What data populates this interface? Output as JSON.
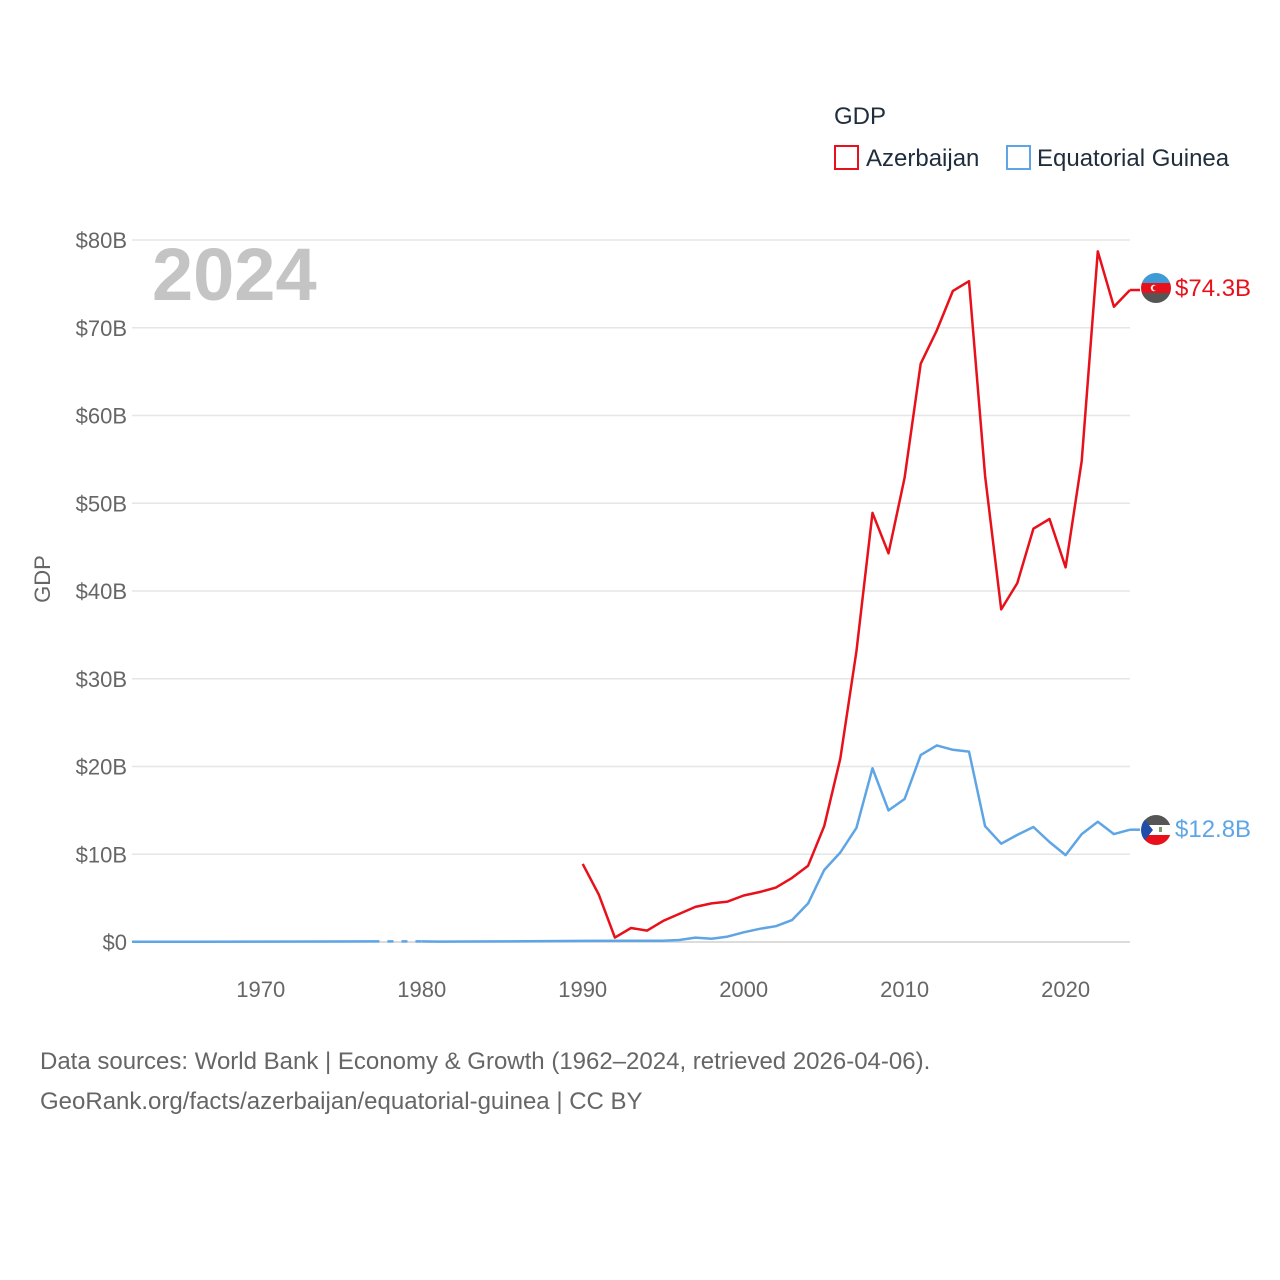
{
  "chart_data": {
    "type": "line",
    "year_label": "2024",
    "legend_title": "GDP",
    "ylabel": "GDP",
    "xlim": [
      1962,
      2024
    ],
    "ylim": [
      0,
      80
    ],
    "x_ticks": [
      1970,
      1980,
      1990,
      2000,
      2010,
      2020
    ],
    "x_tick_labels": [
      "1970",
      "1980",
      "1990",
      "2000",
      "2010",
      "2020"
    ],
    "y_ticks": [
      0,
      10,
      20,
      30,
      40,
      50,
      60,
      70,
      80
    ],
    "y_tick_labels": [
      "$0",
      "$10B",
      "$20B",
      "$30B",
      "$40B",
      "$50B",
      "$60B",
      "$70B",
      "$80B"
    ],
    "unit": "billion USD",
    "series": [
      {
        "name": "Azerbaijan",
        "color": "#e8101a",
        "end_label": "$74.3B",
        "flag": "azerbaijan-flag-icon",
        "points": [
          [
            1990,
            8.9
          ],
          [
            1991,
            5.4
          ],
          [
            1992,
            0.5
          ],
          [
            1993,
            1.6
          ],
          [
            1994,
            1.3
          ],
          [
            1995,
            2.4
          ],
          [
            1996,
            3.2
          ],
          [
            1997,
            4.0
          ],
          [
            1998,
            4.4
          ],
          [
            1999,
            4.6
          ],
          [
            2000,
            5.3
          ],
          [
            2001,
            5.7
          ],
          [
            2002,
            6.2
          ],
          [
            2003,
            7.3
          ],
          [
            2004,
            8.7
          ],
          [
            2005,
            13.2
          ],
          [
            2006,
            20.9
          ],
          [
            2007,
            33.1
          ],
          [
            2008,
            48.9
          ],
          [
            2009,
            44.3
          ],
          [
            2010,
            52.9
          ],
          [
            2011,
            65.9
          ],
          [
            2012,
            69.7
          ],
          [
            2013,
            74.2
          ],
          [
            2014,
            75.3
          ],
          [
            2015,
            53.1
          ],
          [
            2016,
            37.9
          ],
          [
            2017,
            40.9
          ],
          [
            2018,
            47.1
          ],
          [
            2019,
            48.2
          ],
          [
            2020,
            42.7
          ],
          [
            2021,
            54.8
          ],
          [
            2022,
            78.7
          ],
          [
            2023,
            72.4
          ],
          [
            2024,
            74.3
          ]
        ]
      },
      {
        "name": "Equatorial Guinea",
        "color": "#5ea5e6",
        "end_label": "$12.8B",
        "flag": "equatorial-guinea-flag-icon",
        "gap_years": [
          1977,
          1980
        ],
        "points": [
          [
            1962,
            0.02
          ],
          [
            1966,
            0.03
          ],
          [
            1970,
            0.04
          ],
          [
            1974,
            0.06
          ],
          [
            1977,
            0.07
          ],
          [
            1980,
            0.07
          ],
          [
            1981,
            0.05
          ],
          [
            1985,
            0.07
          ],
          [
            1990,
            0.13
          ],
          [
            1993,
            0.15
          ],
          [
            1995,
            0.14
          ],
          [
            1996,
            0.23
          ],
          [
            1997,
            0.5
          ],
          [
            1998,
            0.37
          ],
          [
            1999,
            0.62
          ],
          [
            2000,
            1.1
          ],
          [
            2001,
            1.5
          ],
          [
            2002,
            1.8
          ],
          [
            2003,
            2.5
          ],
          [
            2004,
            4.4
          ],
          [
            2005,
            8.2
          ],
          [
            2006,
            10.2
          ],
          [
            2007,
            13.0
          ],
          [
            2008,
            19.8
          ],
          [
            2009,
            15.0
          ],
          [
            2010,
            16.3
          ],
          [
            2011,
            21.3
          ],
          [
            2012,
            22.4
          ],
          [
            2013,
            21.9
          ],
          [
            2014,
            21.7
          ],
          [
            2015,
            13.2
          ],
          [
            2016,
            11.2
          ],
          [
            2017,
            12.2
          ],
          [
            2018,
            13.1
          ],
          [
            2019,
            11.4
          ],
          [
            2020,
            9.9
          ],
          [
            2021,
            12.3
          ],
          [
            2022,
            13.7
          ],
          [
            2023,
            12.3
          ],
          [
            2024,
            12.8
          ]
        ]
      }
    ]
  },
  "footer": {
    "line1": "Data sources: World Bank | Economy & Growth (1962–2024, retrieved 2026-04-06).",
    "line2": "GeoRank.org/facts/azerbaijan/equatorial-guinea | CC BY"
  }
}
